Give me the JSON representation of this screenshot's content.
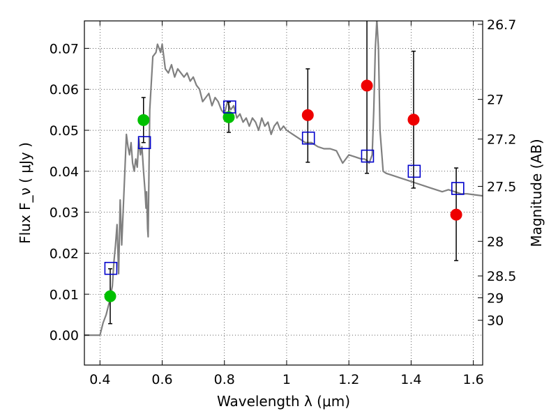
{
  "chart_data": {
    "type": "scatter",
    "xlabel": "Wavelength  λ (μm)",
    "ylabel": "Flux  F_ν  ( μJy )",
    "y2label": "Magnitude (AB)",
    "xlim": [
      0.35,
      1.63
    ],
    "ylim": [
      -0.0073,
      0.0767
    ],
    "x_ticks": [
      0.4,
      0.6,
      0.8,
      1.0,
      1.2,
      1.4,
      1.6
    ],
    "x_tick_labels": [
      "0.4",
      "0.6",
      "0.8",
      "1",
      "1.2",
      "1.4",
      "1.6"
    ],
    "y_ticks": [
      0.0,
      0.01,
      0.02,
      0.03,
      0.04,
      0.05,
      0.06,
      0.07
    ],
    "y_tick_labels": [
      "0.00",
      "0.01",
      "0.02",
      "0.03",
      "0.04",
      "0.05",
      "0.06",
      "0.07"
    ],
    "mag_ticks": [
      26.7,
      27.0,
      27.2,
      27.5,
      28.0,
      28.5,
      29.0,
      30.0
    ],
    "mag_tick_labels": [
      "26.7",
      "27",
      "27.2",
      "27.5",
      "28",
      "28.5",
      "29",
      "30"
    ],
    "grid": true,
    "colors": {
      "sed_line": "#808080",
      "green_points": "#00c000",
      "red_points": "#ee0000",
      "model_squares": "#0000cc",
      "error_bars": "#000000"
    },
    "series": [
      {
        "type": "line",
        "x": [
          0.35,
          0.4,
          0.41,
          0.42,
          0.43,
          0.44,
          0.445,
          0.45,
          0.455,
          0.46,
          0.465,
          0.47,
          0.48,
          0.485,
          0.49,
          0.495,
          0.5,
          0.505,
          0.51,
          0.515,
          0.52,
          0.525,
          0.53,
          0.535,
          0.54,
          0.545,
          0.548,
          0.55,
          0.553,
          0.555,
          0.56,
          0.57,
          0.58,
          0.585,
          0.59,
          0.595,
          0.6,
          0.605,
          0.61,
          0.62,
          0.63,
          0.64,
          0.65,
          0.66,
          0.67,
          0.68,
          0.69,
          0.7,
          0.71,
          0.72,
          0.73,
          0.74,
          0.75,
          0.76,
          0.77,
          0.78,
          0.79,
          0.8,
          0.81,
          0.82,
          0.83,
          0.84,
          0.85,
          0.86,
          0.87,
          0.88,
          0.89,
          0.9,
          0.91,
          0.92,
          0.93,
          0.94,
          0.95,
          0.96,
          0.97,
          0.98,
          0.99,
          1.0,
          1.02,
          1.04,
          1.06,
          1.08,
          1.1,
          1.12,
          1.14,
          1.16,
          1.18,
          1.2,
          1.22,
          1.24,
          1.25,
          1.26,
          1.265,
          1.27,
          1.275,
          1.28,
          1.285,
          1.29,
          1.295,
          1.3,
          1.31,
          1.32,
          1.34,
          1.36,
          1.38,
          1.4,
          1.42,
          1.44,
          1.46,
          1.48,
          1.5,
          1.52,
          1.54,
          1.56,
          1.58,
          1.6,
          1.63
        ],
        "y": [
          0.0,
          0.0,
          0.003,
          0.005,
          0.008,
          0.012,
          0.018,
          0.022,
          0.027,
          0.015,
          0.033,
          0.022,
          0.04,
          0.049,
          0.046,
          0.044,
          0.047,
          0.042,
          0.04,
          0.043,
          0.041,
          0.048,
          0.044,
          0.046,
          0.04,
          0.035,
          0.031,
          0.035,
          0.026,
          0.024,
          0.055,
          0.068,
          0.069,
          0.071,
          0.07,
          0.069,
          0.071,
          0.068,
          0.065,
          0.064,
          0.066,
          0.063,
          0.065,
          0.064,
          0.063,
          0.064,
          0.062,
          0.063,
          0.061,
          0.06,
          0.057,
          0.058,
          0.059,
          0.056,
          0.058,
          0.057,
          0.055,
          0.054,
          0.057,
          0.055,
          0.056,
          0.053,
          0.054,
          0.052,
          0.053,
          0.051,
          0.053,
          0.052,
          0.05,
          0.053,
          0.051,
          0.052,
          0.049,
          0.051,
          0.052,
          0.05,
          0.051,
          0.05,
          0.049,
          0.048,
          0.047,
          0.047,
          0.046,
          0.0455,
          0.0455,
          0.045,
          0.042,
          0.044,
          0.0435,
          0.043,
          0.043,
          0.0425,
          0.042,
          0.043,
          0.044,
          0.055,
          0.07,
          0.077,
          0.07,
          0.05,
          0.04,
          0.0395,
          0.039,
          0.0385,
          0.038,
          0.0375,
          0.037,
          0.0365,
          0.036,
          0.0355,
          0.035,
          0.0355,
          0.035,
          0.0345,
          0.0345,
          0.0343,
          0.034
        ]
      },
      {
        "type": "scatter",
        "marker": "circle",
        "color": "green",
        "x": [
          0.433,
          0.54,
          0.814
        ],
        "y": [
          0.0095,
          0.0525,
          0.0532
        ],
        "yerr_low": [
          0.0067,
          0.0055,
          0.0037
        ],
        "yerr_high": [
          0.0067,
          0.0055,
          0.0037
        ]
      },
      {
        "type": "scatter",
        "marker": "circle",
        "color": "red",
        "x": [
          1.068,
          1.258,
          1.408,
          1.545
        ],
        "y": [
          0.0537,
          0.0609,
          0.0526,
          0.0294
        ],
        "yerr_low": [
          0.0115,
          0.0214,
          0.0167,
          0.0112
        ],
        "yerr_high": [
          0.0113,
          0.016,
          0.0167,
          0.0114
        ]
      },
      {
        "type": "scatter",
        "marker": "square",
        "color": "blue",
        "x": [
          0.435,
          0.543,
          0.817,
          1.07,
          1.26,
          1.41,
          1.55
        ],
        "y": [
          0.0163,
          0.047,
          0.0557,
          0.0481,
          0.0437,
          0.04,
          0.0358
        ]
      }
    ]
  }
}
